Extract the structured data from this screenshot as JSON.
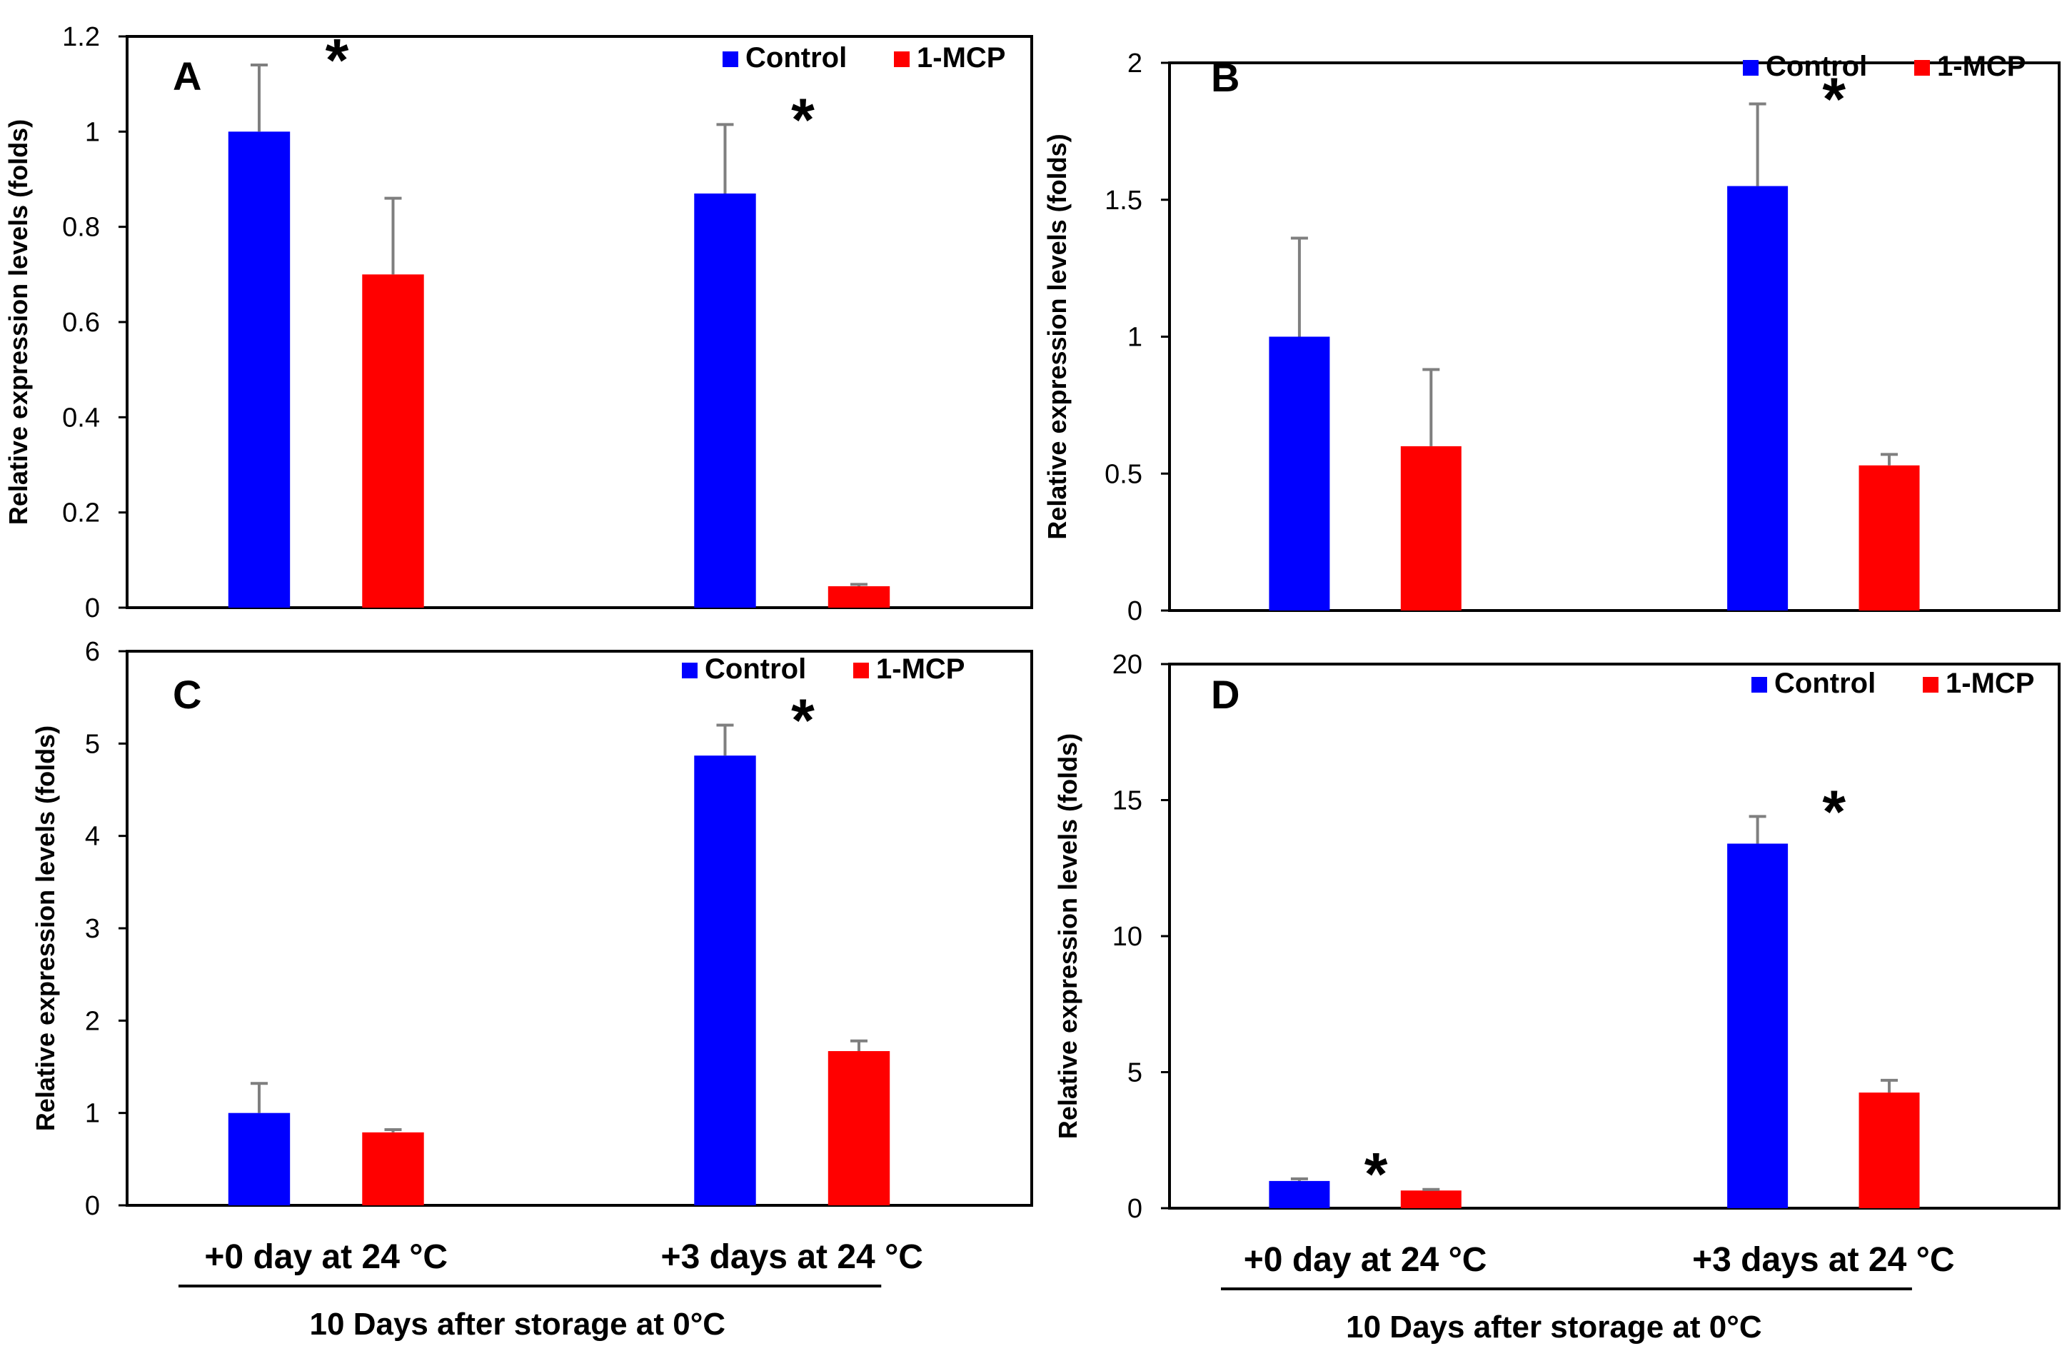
{
  "figure": {
    "categories": [
      "+0 day at 24 °C",
      "+3 days at 24 °C"
    ],
    "group_caption": "10 Days after storage at 0°C",
    "legend": [
      "Control",
      "1-MCP"
    ],
    "colors": {
      "Control": "#0000ff",
      "1-MCP": "#ff0000",
      "error": "#7f7f7f",
      "axis": "#000000"
    }
  },
  "chart_data": [
    {
      "type": "bar",
      "panel_label": "A",
      "ylabel": "Relative expression levels (folds)",
      "ylim": [
        0,
        1.2
      ],
      "yticks": [
        "0",
        "0.2",
        "0.4",
        "0.6",
        "0.8",
        "1",
        "1.2"
      ],
      "categories": [
        "+0 day at 24 °C",
        "+3 days at 24 °C"
      ],
      "series": [
        {
          "name": "Control",
          "values": [
            1.0,
            0.87
          ],
          "errors": [
            0.14,
            0.145
          ]
        },
        {
          "name": "1-MCP",
          "values": [
            0.7,
            0.045
          ],
          "errors": [
            0.16,
            0.004
          ]
        }
      ],
      "significance": [
        {
          "category": 0,
          "label": "*"
        },
        {
          "category": 1,
          "label": "*"
        }
      ]
    },
    {
      "type": "bar",
      "panel_label": "B",
      "ylabel": "Relative expression levels (folds)",
      "ylim": [
        0,
        2
      ],
      "yticks": [
        "0",
        "0.5",
        "1",
        "1.5",
        "2"
      ],
      "categories": [
        "+0 day at 24 °C",
        "+3 days at 24 °C"
      ],
      "series": [
        {
          "name": "Control",
          "values": [
            1.0,
            1.55
          ],
          "errors": [
            0.36,
            0.3
          ]
        },
        {
          "name": "1-MCP",
          "values": [
            0.6,
            0.53
          ],
          "errors": [
            0.28,
            0.04
          ]
        }
      ],
      "significance": [
        {
          "category": 1,
          "label": "*"
        }
      ]
    },
    {
      "type": "bar",
      "panel_label": "C",
      "ylabel": "Relative expression levels (folds)",
      "ylim": [
        0,
        6
      ],
      "yticks": [
        "0",
        "1",
        "2",
        "3",
        "4",
        "5",
        "6"
      ],
      "categories": [
        "+0 day at 24 °C",
        "+3 days at 24 °C"
      ],
      "series": [
        {
          "name": "Control",
          "values": [
            1.0,
            4.87
          ],
          "errors": [
            0.32,
            0.33
          ]
        },
        {
          "name": "1-MCP",
          "values": [
            0.79,
            1.67
          ],
          "errors": [
            0.03,
            0.11
          ]
        }
      ],
      "significance": [
        {
          "category": 1,
          "label": "*"
        }
      ]
    },
    {
      "type": "bar",
      "panel_label": "D",
      "ylabel": "Relative expression levels (folds)",
      "ylim": [
        0,
        20
      ],
      "yticks": [
        "0",
        "5",
        "10",
        "15",
        "20"
      ],
      "categories": [
        "+0 day at 24 °C",
        "+3 days at 24 °C"
      ],
      "series": [
        {
          "name": "Control",
          "values": [
            1.0,
            13.4
          ],
          "errors": [
            0.08,
            1.0
          ]
        },
        {
          "name": "1-MCP",
          "values": [
            0.65,
            4.25
          ],
          "errors": [
            0.04,
            0.45
          ]
        }
      ],
      "significance": [
        {
          "category": 0,
          "label": "*"
        },
        {
          "category": 1,
          "label": "*"
        }
      ]
    }
  ]
}
